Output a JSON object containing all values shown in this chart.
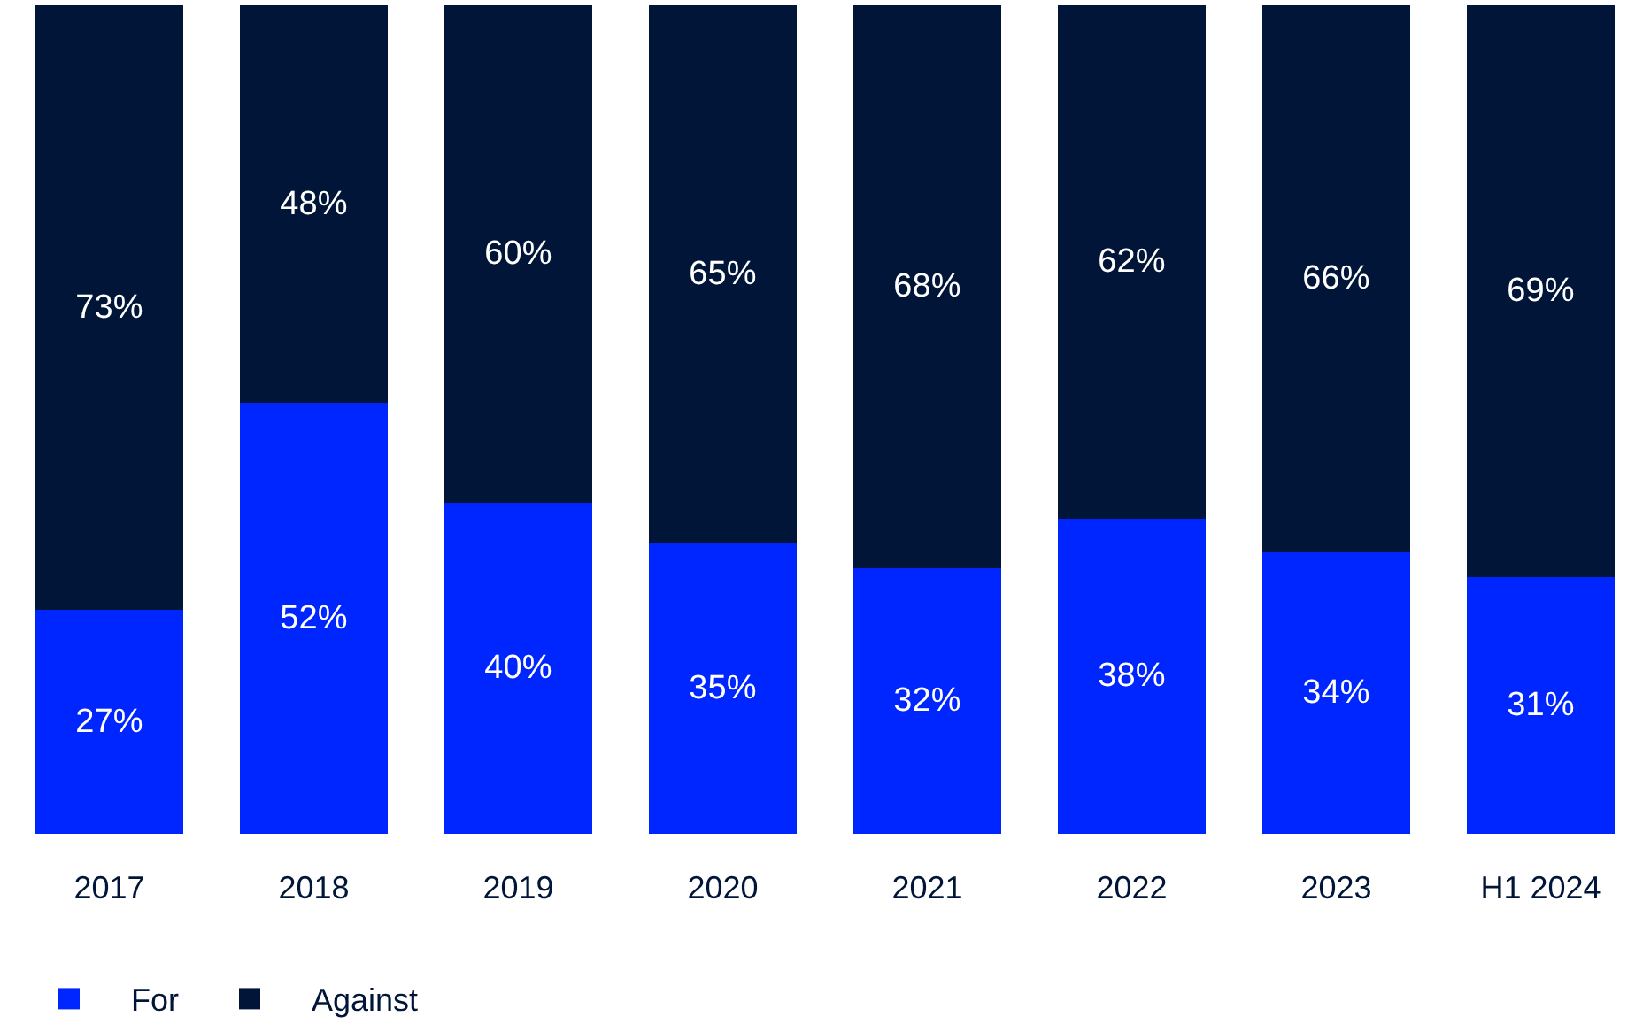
{
  "chart_data": {
    "type": "bar",
    "stacked": true,
    "categories": [
      "2017",
      "2018",
      "2019",
      "2020",
      "2021",
      "2022",
      "2023",
      "H1 2024"
    ],
    "ylim": [
      0,
      100
    ],
    "legend": "bottom left",
    "tick_labels": "x",
    "series": [
      {
        "name": "For",
        "color": "#0026ff",
        "values": [
          27,
          52,
          40,
          35,
          32,
          38,
          34,
          31
        ],
        "value_labels": [
          "27%",
          "52%",
          "40%",
          "35%",
          "32%",
          "38%",
          "34%",
          "31%"
        ]
      },
      {
        "name": "Against",
        "color": "#001537",
        "values": [
          73,
          48,
          60,
          65,
          68,
          62,
          66,
          69
        ],
        "value_labels": [
          "73%",
          "48%",
          "60%",
          "65%",
          "68%",
          "62%",
          "66%",
          "69%"
        ]
      }
    ]
  }
}
